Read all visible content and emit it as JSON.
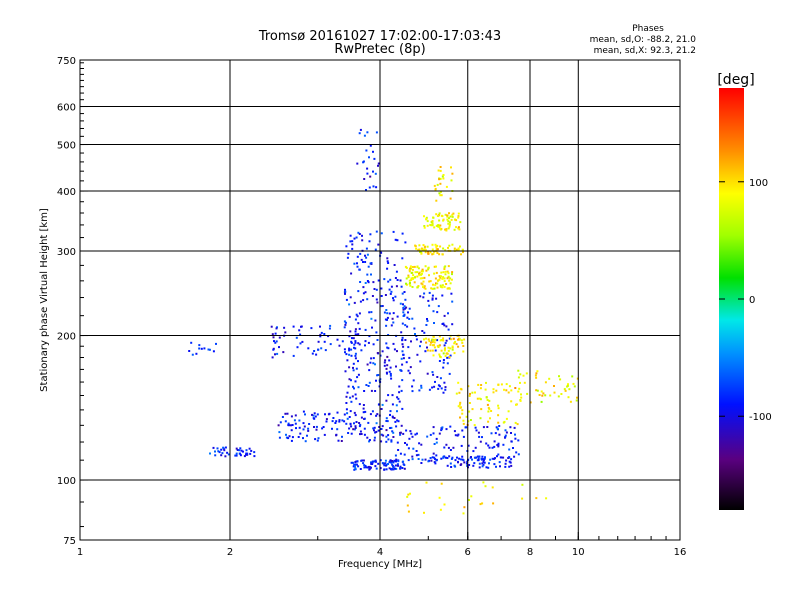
{
  "chart_data": {
    "type": "scatter",
    "title": "Tromsø 20161027 17:02:00-17:03:43",
    "subtitle": "RwPretec (8p)",
    "xlabel": "Frequency [MHz]",
    "ylabel": "Stationary phase Virtual Height [km]",
    "xscale": "log",
    "yscale": "log",
    "xlim": [
      1,
      16
    ],
    "ylim": [
      75,
      750
    ],
    "xticks": [
      1,
      2,
      4,
      6,
      8,
      10,
      16
    ],
    "yticks": [
      75,
      100,
      200,
      300,
      400,
      500,
      600,
      750
    ],
    "x_gridlines": [
      2,
      4,
      6,
      8,
      10
    ],
    "y_gridlines": [
      100,
      200,
      300,
      400,
      500,
      600
    ],
    "grid": true,
    "stats": {
      "heading": "Phases",
      "line_o": "mean, sd,O: -88.2, 21.0",
      "line_x": "mean, sd,X:  92.3, 21.2"
    },
    "colorbar": {
      "label": "[deg]",
      "range": [
        -180,
        180
      ],
      "ticks": [
        100,
        0,
        -100
      ],
      "placement": "right"
    },
    "series": [
      {
        "mode": "O",
        "phase_mean": -88.2,
        "phase_sd": 21.0,
        "clusters": [
          {
            "f": [
              1.82,
              2.25
            ],
            "h": [
              112,
              117
            ],
            "n": 40
          },
          {
            "f": [
              2.5,
              4.4
            ],
            "h": [
              120,
              140
            ],
            "n": 160
          },
          {
            "f": [
              4.3,
              7.6
            ],
            "h": [
              110,
              130
            ],
            "n": 130
          },
          {
            "f": [
              3.5,
              4.5
            ],
            "h": [
              105,
              110
            ],
            "n": 90
          },
          {
            "f": [
              4.8,
              7.4
            ],
            "h": [
              106,
              112
            ],
            "n": 80
          },
          {
            "f": [
              3.4,
              4.5
            ],
            "h": [
              140,
              330
            ],
            "n": 260
          },
          {
            "f": [
              4.4,
              5.6
            ],
            "h": [
              150,
              250
            ],
            "n": 110
          },
          {
            "f": [
              2.4,
              3.6
            ],
            "h": [
              180,
              210
            ],
            "n": 70
          },
          {
            "f": [
              3.6,
              4.0
            ],
            "h": [
              400,
              540
            ],
            "n": 25
          },
          {
            "f": [
              1.6,
              1.9
            ],
            "h": [
              180,
              195
            ],
            "n": 12
          }
        ]
      },
      {
        "mode": "X",
        "phase_mean": 92.3,
        "phase_sd": 21.2,
        "clusters": [
          {
            "f": [
              4.5,
              5.6
            ],
            "h": [
              250,
              280
            ],
            "n": 120
          },
          {
            "f": [
              4.9,
              5.8
            ],
            "h": [
              330,
              360
            ],
            "n": 70
          },
          {
            "f": [
              4.7,
              5.9
            ],
            "h": [
              295,
              310
            ],
            "n": 60
          },
          {
            "f": [
              4.9,
              5.9
            ],
            "h": [
              180,
              200
            ],
            "n": 70
          },
          {
            "f": [
              5.7,
              7.7
            ],
            "h": [
              130,
              160
            ],
            "n": 80
          },
          {
            "f": [
              7.5,
              10.0
            ],
            "h": [
              145,
              170
            ],
            "n": 45
          },
          {
            "f": [
              5.1,
              5.6
            ],
            "h": [
              380,
              450
            ],
            "n": 25
          },
          {
            "f": [
              4.5,
              8.8
            ],
            "h": [
              85,
              100
            ],
            "n": 25
          }
        ]
      }
    ]
  }
}
